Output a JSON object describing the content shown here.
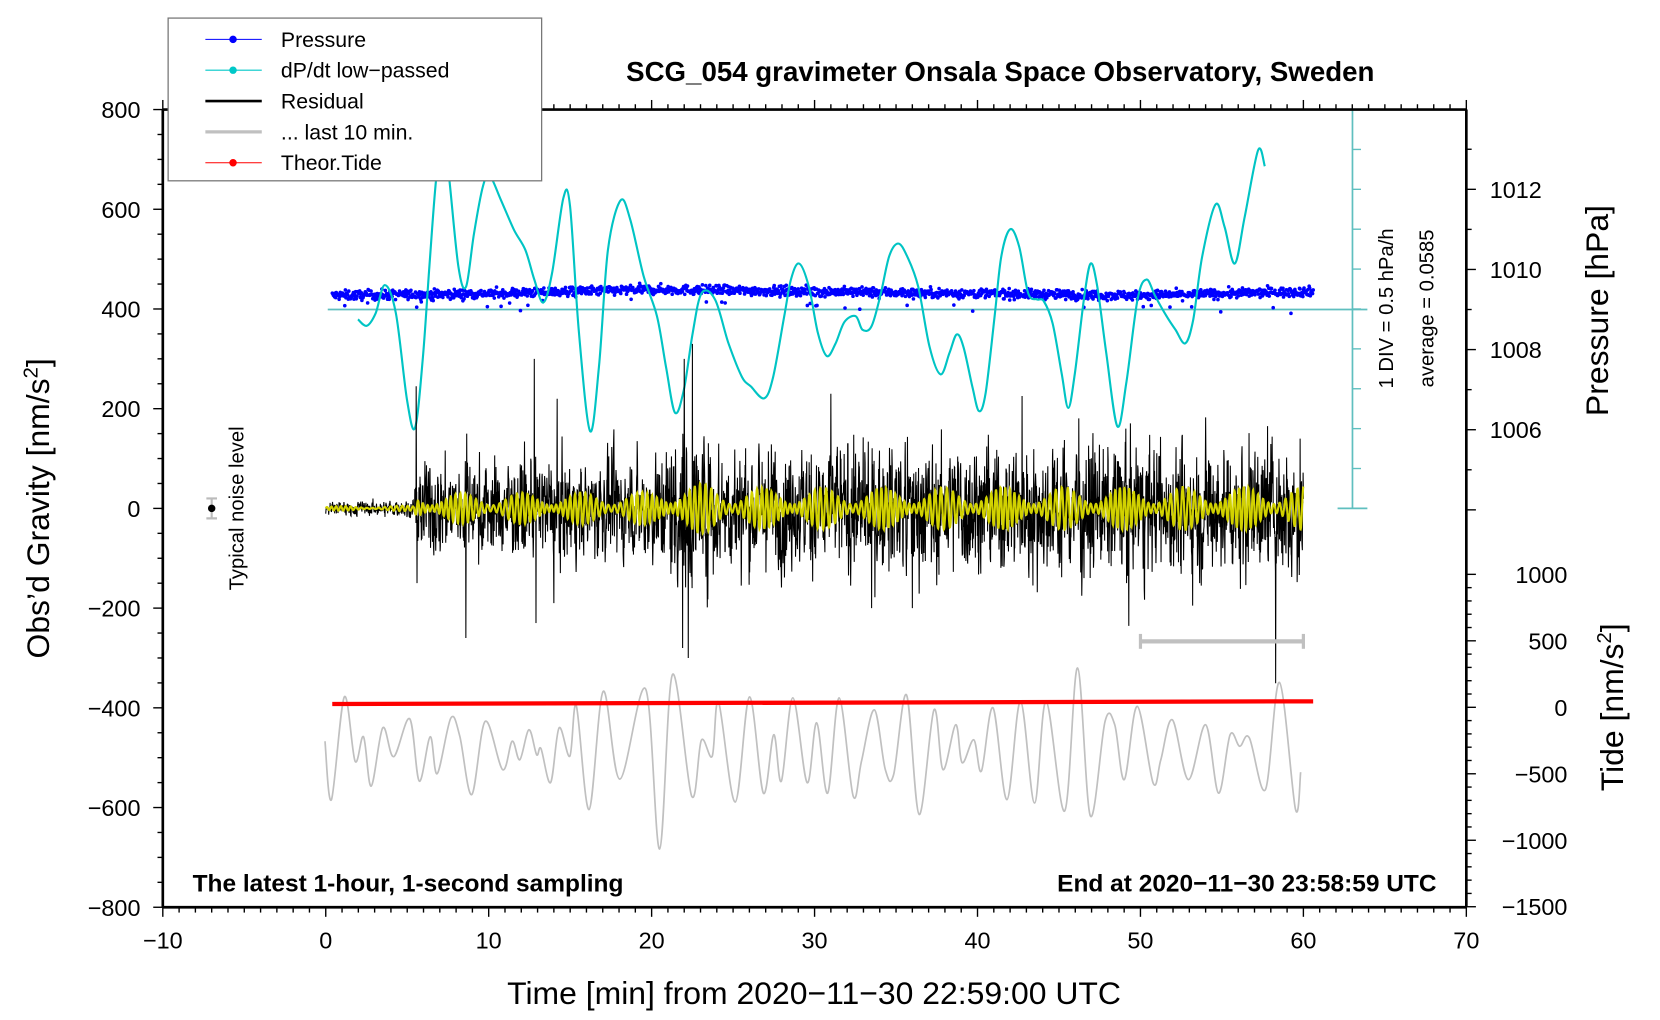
{
  "chart_data": {
    "type": "line",
    "title": "SCG_054 gravimeter Onsala Space Observatory, Sweden",
    "xlabel": "Time [min] from 2020−11−30 22:59:00 UTC",
    "ylabel_left": "Obs’d Gravity [nm/s",
    "ylabel_left_sup": "2",
    "ylabel_left_end": "]",
    "ylabel_right_pressure": "Pressure [hPa]",
    "ylabel_right_tide": "Tide [nm/s",
    "ylabel_right_tide_sup": "2",
    "ylabel_right_tide_end": "]",
    "xlim": [
      -10,
      70
    ],
    "ylim_gravity": [
      -800,
      800
    ],
    "ylim_tide": [
      -1500,
      1000
    ],
    "x_ticks": [
      "−10",
      "0",
      "10",
      "20",
      "30",
      "40",
      "50",
      "60",
      "70"
    ],
    "y_ticks_gravity": [
      "800",
      "600",
      "400",
      "200",
      "0",
      "−200",
      "−400",
      "−600",
      "−800"
    ],
    "y_ticks_pressure": [
      "1012",
      "1010",
      "1008",
      "1006"
    ],
    "y_ticks_tide": [
      "1000",
      "500",
      "0",
      "−500",
      "−1000",
      "−1500"
    ],
    "annotation_left": "The latest 1-hour, 1-second sampling",
    "annotation_right": "End at 2020−11−30 23:58:59 UTC",
    "dpdt_scale": "1 DIV = 0.5 hPa/h",
    "dpdt_average": "average = 0.0585",
    "noise_label": "Typical noise level",
    "grid": false,
    "legend_position": "top-left",
    "legend": [
      {
        "label": "Pressure",
        "color": "#0000ff"
      },
      {
        "label": "dP/dt low−passed",
        "color": "#00c8c8"
      },
      {
        "label": "Residual",
        "color": "#000000"
      },
      {
        "label": "... last 10 min.",
        "color": "#c0c0c0"
      },
      {
        "label": "Theor.Tide",
        "color": "#ff0000"
      }
    ],
    "colors": {
      "pressure": "#0000ff",
      "dpdt": "#00c4c4",
      "dpdt_axis": "#5fbfbf",
      "residual": "#000000",
      "filtered": "#d2d200",
      "last10": "#c0c0c0",
      "tide": "#ff0000"
    },
    "series": {
      "pressure_hPa_trend": [
        [
          0.4,
          1009.35
        ],
        [
          10,
          1009.4
        ],
        [
          20,
          1009.5
        ],
        [
          30,
          1009.45
        ],
        [
          40,
          1009.4
        ],
        [
          50,
          1009.35
        ],
        [
          60.6,
          1009.45
        ]
      ],
      "dpdt_hPa_per_h": [
        [
          1.98,
          -0.13
        ],
        [
          2.52,
          -0.21
        ],
        [
          3.07,
          -0.05
        ],
        [
          3.62,
          0.3
        ],
        [
          4.3,
          -0.05
        ],
        [
          4.99,
          -1.14
        ],
        [
          5.48,
          -1.49
        ],
        [
          5.95,
          -0.64
        ],
        [
          6.36,
          0.53
        ],
        [
          6.77,
          1.62
        ],
        [
          7.2,
          2.3
        ],
        [
          7.59,
          1.62
        ],
        [
          8.14,
          0.53
        ],
        [
          8.61,
          0.28
        ],
        [
          9.1,
          0.95
        ],
        [
          9.65,
          1.54
        ],
        [
          10.06,
          1.67
        ],
        [
          10.74,
          1.37
        ],
        [
          11.56,
          0.99
        ],
        [
          12.25,
          0.74
        ],
        [
          12.8,
          0.37
        ],
        [
          13.35,
          0.08
        ],
        [
          13.89,
          0.45
        ],
        [
          14.58,
          1.39
        ],
        [
          14.99,
          1.29
        ],
        [
          15.54,
          -0.3
        ],
        [
          16.22,
          -1.53
        ],
        [
          16.77,
          -0.72
        ],
        [
          17.32,
          0.74
        ],
        [
          18.09,
          1.36
        ],
        [
          18.69,
          1.12
        ],
        [
          19.51,
          0.41
        ],
        [
          20.33,
          -0.09
        ],
        [
          20.88,
          -0.72
        ],
        [
          21.43,
          -1.3
        ],
        [
          21.98,
          -1.01
        ],
        [
          22.52,
          -0.3
        ],
        [
          23.07,
          0.2
        ],
        [
          23.89,
          0.12
        ],
        [
          24.72,
          -0.43
        ],
        [
          25.54,
          -0.85
        ],
        [
          26.09,
          -0.97
        ],
        [
          26.91,
          -1.12
        ],
        [
          27.46,
          -0.85
        ],
        [
          28.14,
          -0.09
        ],
        [
          28.55,
          0.37
        ],
        [
          29.05,
          0.57
        ],
        [
          29.65,
          0.28
        ],
        [
          30.2,
          -0.3
        ],
        [
          30.75,
          -0.59
        ],
        [
          31.29,
          -0.43
        ],
        [
          31.84,
          -0.16
        ],
        [
          32.53,
          -0.09
        ],
        [
          32.94,
          -0.26
        ],
        [
          33.49,
          -0.22
        ],
        [
          34.03,
          0.16
        ],
        [
          34.58,
          0.66
        ],
        [
          35.13,
          0.82
        ],
        [
          35.68,
          0.66
        ],
        [
          36.36,
          0.28
        ],
        [
          37.05,
          -0.47
        ],
        [
          37.73,
          -0.82
        ],
        [
          38.28,
          -0.55
        ],
        [
          38.72,
          -0.32
        ],
        [
          39.13,
          -0.47
        ],
        [
          39.68,
          -0.97
        ],
        [
          40.09,
          -1.28
        ],
        [
          40.5,
          -1.05
        ],
        [
          41.05,
          -0.09
        ],
        [
          41.46,
          0.66
        ],
        [
          42.01,
          1.0
        ],
        [
          42.56,
          0.78
        ],
        [
          43.11,
          0.2
        ],
        [
          43.65,
          0.12
        ],
        [
          44.06,
          0.1
        ],
        [
          44.61,
          -0.18
        ],
        [
          45.16,
          -0.8
        ],
        [
          45.57,
          -1.24
        ],
        [
          45.98,
          -0.8
        ],
        [
          46.53,
          0.12
        ],
        [
          46.94,
          0.57
        ],
        [
          47.35,
          0.28
        ],
        [
          47.9,
          -0.55
        ],
        [
          48.58,
          -1.47
        ],
        [
          49.13,
          -0.93
        ],
        [
          49.82,
          0.12
        ],
        [
          50.37,
          0.37
        ],
        [
          50.91,
          0.16
        ],
        [
          51.6,
          -0.09
        ],
        [
          52.15,
          -0.26
        ],
        [
          52.75,
          -0.43
        ],
        [
          53.24,
          -0.13
        ],
        [
          53.79,
          0.66
        ],
        [
          54.61,
          1.31
        ],
        [
          55.16,
          1.03
        ],
        [
          55.79,
          0.57
        ],
        [
          56.4,
          1.16
        ],
        [
          57.22,
          1.99
        ],
        [
          57.63,
          1.79
        ]
      ],
      "residual_envelope_nms2": [
        [
          0,
          8
        ],
        [
          5.4,
          10
        ],
        [
          5.6,
          55
        ],
        [
          20,
          60
        ],
        [
          21.5,
          95
        ],
        [
          23.5,
          90
        ],
        [
          24.5,
          75
        ],
        [
          60,
          80
        ]
      ],
      "residual_spikes_nms2": [
        [
          5.55,
          245
        ],
        [
          5.6,
          -150
        ],
        [
          8.6,
          -260
        ],
        [
          8.65,
          150
        ],
        [
          12.8,
          300
        ],
        [
          12.9,
          -230
        ],
        [
          14.0,
          -190
        ],
        [
          14.2,
          220
        ],
        [
          21.9,
          -280
        ],
        [
          22.0,
          300
        ],
        [
          22.25,
          -300
        ],
        [
          22.5,
          330
        ],
        [
          31.0,
          230
        ],
        [
          33.5,
          -200
        ],
        [
          36.0,
          -200
        ],
        [
          49.1,
          160
        ],
        [
          49.15,
          -150
        ],
        [
          53.2,
          -195
        ],
        [
          57.8,
          165
        ],
        [
          59.8,
          140
        ]
      ],
      "last10_nms2_offset": [
        [
          -0.05,
          -467
        ],
        [
          0.35,
          -584
        ],
        [
          1.14,
          -378
        ],
        [
          1.8,
          -507
        ],
        [
          2.32,
          -458
        ],
        [
          2.79,
          -557
        ],
        [
          3.5,
          -440
        ],
        [
          4.17,
          -498
        ],
        [
          5.15,
          -422
        ],
        [
          5.74,
          -547
        ],
        [
          6.41,
          -458
        ],
        [
          6.84,
          -532
        ],
        [
          7.67,
          -421
        ],
        [
          8.22,
          -456
        ],
        [
          8.96,
          -574
        ],
        [
          9.79,
          -427
        ],
        [
          10.85,
          -524
        ],
        [
          11.44,
          -467
        ],
        [
          11.91,
          -504
        ],
        [
          12.47,
          -444
        ],
        [
          12.94,
          -494
        ],
        [
          13.21,
          -482
        ],
        [
          13.8,
          -550
        ],
        [
          14.32,
          -440
        ],
        [
          14.98,
          -497
        ],
        [
          15.38,
          -396
        ],
        [
          16.16,
          -604
        ],
        [
          17.03,
          -367
        ],
        [
          18.05,
          -543
        ],
        [
          19.63,
          -362
        ],
        [
          20.49,
          -683
        ],
        [
          21.28,
          -333
        ],
        [
          22.46,
          -577
        ],
        [
          23.05,
          -465
        ],
        [
          23.72,
          -497
        ],
        [
          24.11,
          -389
        ],
        [
          25.13,
          -589
        ],
        [
          26.0,
          -378
        ],
        [
          26.86,
          -571
        ],
        [
          27.49,
          -454
        ],
        [
          27.96,
          -547
        ],
        [
          28.67,
          -380
        ],
        [
          29.54,
          -550
        ],
        [
          30.13,
          -430
        ],
        [
          30.8,
          -571
        ],
        [
          31.51,
          -380
        ],
        [
          32.37,
          -577
        ],
        [
          32.88,
          -507
        ],
        [
          33.67,
          -404
        ],
        [
          34.34,
          -524
        ],
        [
          34.85,
          -534
        ],
        [
          35.64,
          -374
        ],
        [
          36.42,
          -614
        ],
        [
          37.33,
          -404
        ],
        [
          37.88,
          -524
        ],
        [
          38.66,
          -434
        ],
        [
          39.06,
          -510
        ],
        [
          39.77,
          -464
        ],
        [
          40.24,
          -527
        ],
        [
          40.95,
          -400
        ],
        [
          41.81,
          -584
        ],
        [
          42.64,
          -387
        ],
        [
          43.5,
          -591
        ],
        [
          44.21,
          -387
        ],
        [
          45.35,
          -607
        ],
        [
          46.14,
          -320
        ],
        [
          46.93,
          -617
        ],
        [
          47.83,
          -427
        ],
        [
          48.42,
          -434
        ],
        [
          49.01,
          -544
        ],
        [
          49.8,
          -397
        ],
        [
          50.78,
          -551
        ],
        [
          51.25,
          -504
        ],
        [
          51.96,
          -424
        ],
        [
          52.94,
          -544
        ],
        [
          54.0,
          -434
        ],
        [
          54.79,
          -571
        ],
        [
          55.5,
          -454
        ],
        [
          56.09,
          -477
        ],
        [
          56.68,
          -460
        ],
        [
          57.67,
          -564
        ],
        [
          58.53,
          -349
        ],
        [
          59.51,
          -603
        ],
        [
          59.83,
          -529
        ]
      ],
      "theor_tide_nms2": [
        [
          0.4,
          25
        ],
        [
          60.6,
          45
        ]
      ],
      "last10_scale_bar_min": [
        50,
        60
      ],
      "typical_noise": {
        "t": -7,
        "value": 0,
        "error": 20
      }
    }
  }
}
